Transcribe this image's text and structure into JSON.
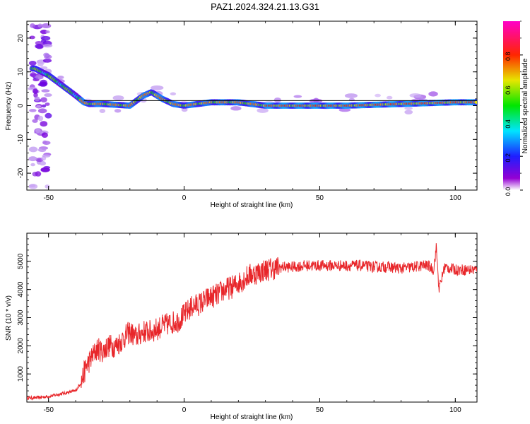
{
  "title": "PAZ1.2024.324.21.13.G31",
  "chart_data": [
    {
      "type": "heatmap",
      "xlabel": "Height of straight line (km)",
      "ylabel": "Frequency (Hz)",
      "xlim": [
        -58,
        108
      ],
      "ylim": [
        -25,
        25
      ],
      "xticks": [
        -50,
        0,
        50,
        100
      ],
      "yticks": [
        -20,
        -10,
        0,
        10,
        20
      ],
      "colorbar": {
        "label": "Normalized spectral amplitude",
        "ticks": [
          0.0,
          0.2,
          0.4,
          0.6,
          0.8
        ],
        "range": [
          0,
          1
        ],
        "colormap": "rainbow (purple-blue-cyan-green-yellow-red-magenta)"
      },
      "ridge": {
        "x": [
          -55,
          -50,
          -45,
          -40,
          -37,
          -35,
          -30,
          -20,
          -15,
          -12,
          -8,
          -4,
          0,
          10,
          20,
          30,
          40,
          60,
          80,
          100,
          108
        ],
        "y": [
          11,
          9,
          6,
          3,
          1,
          0.5,
          0.5,
          0,
          3,
          4,
          2,
          0.5,
          0,
          1,
          1,
          0,
          0,
          0,
          0.5,
          1,
          1
        ]
      },
      "reference_line_y": 1.5
    },
    {
      "type": "line",
      "xlabel": "Height of straight line (km)",
      "ylabel": "SNR (10 * v/v)",
      "xlim": [
        -58,
        108
      ],
      "ylim": [
        0,
        6000
      ],
      "xticks": [
        -50,
        0,
        50,
        100
      ],
      "yticks": [
        1000,
        2000,
        3000,
        4000,
        5000
      ],
      "series_color": "#e8262a",
      "x": [
        -58,
        -55,
        -50,
        -45,
        -40,
        -38,
        -36,
        -34,
        -32,
        -30,
        -28,
        -25,
        -22,
        -20,
        -18,
        -15,
        -12,
        -10,
        -8,
        -5,
        -2,
        0,
        3,
        6,
        9,
        12,
        15,
        18,
        21,
        24,
        27,
        30,
        33,
        36,
        40,
        45,
        50,
        55,
        60,
        65,
        70,
        75,
        80,
        85,
        88,
        90,
        92,
        93,
        94,
        96,
        100,
        104,
        108
      ],
      "values": [
        150,
        150,
        200,
        300,
        400,
        700,
        1300,
        1600,
        1900,
        1800,
        2000,
        2000,
        2300,
        2500,
        2300,
        2500,
        2500,
        2600,
        2700,
        2800,
        2900,
        3100,
        3400,
        3500,
        3700,
        3800,
        4000,
        4100,
        4300,
        4500,
        4600,
        4700,
        4750,
        4800,
        4800,
        4850,
        4850,
        4850,
        4850,
        4850,
        4800,
        4800,
        4750,
        4800,
        4850,
        4850,
        4700,
        5500,
        4000,
        4800,
        4700,
        4700,
        4700
      ]
    }
  ]
}
